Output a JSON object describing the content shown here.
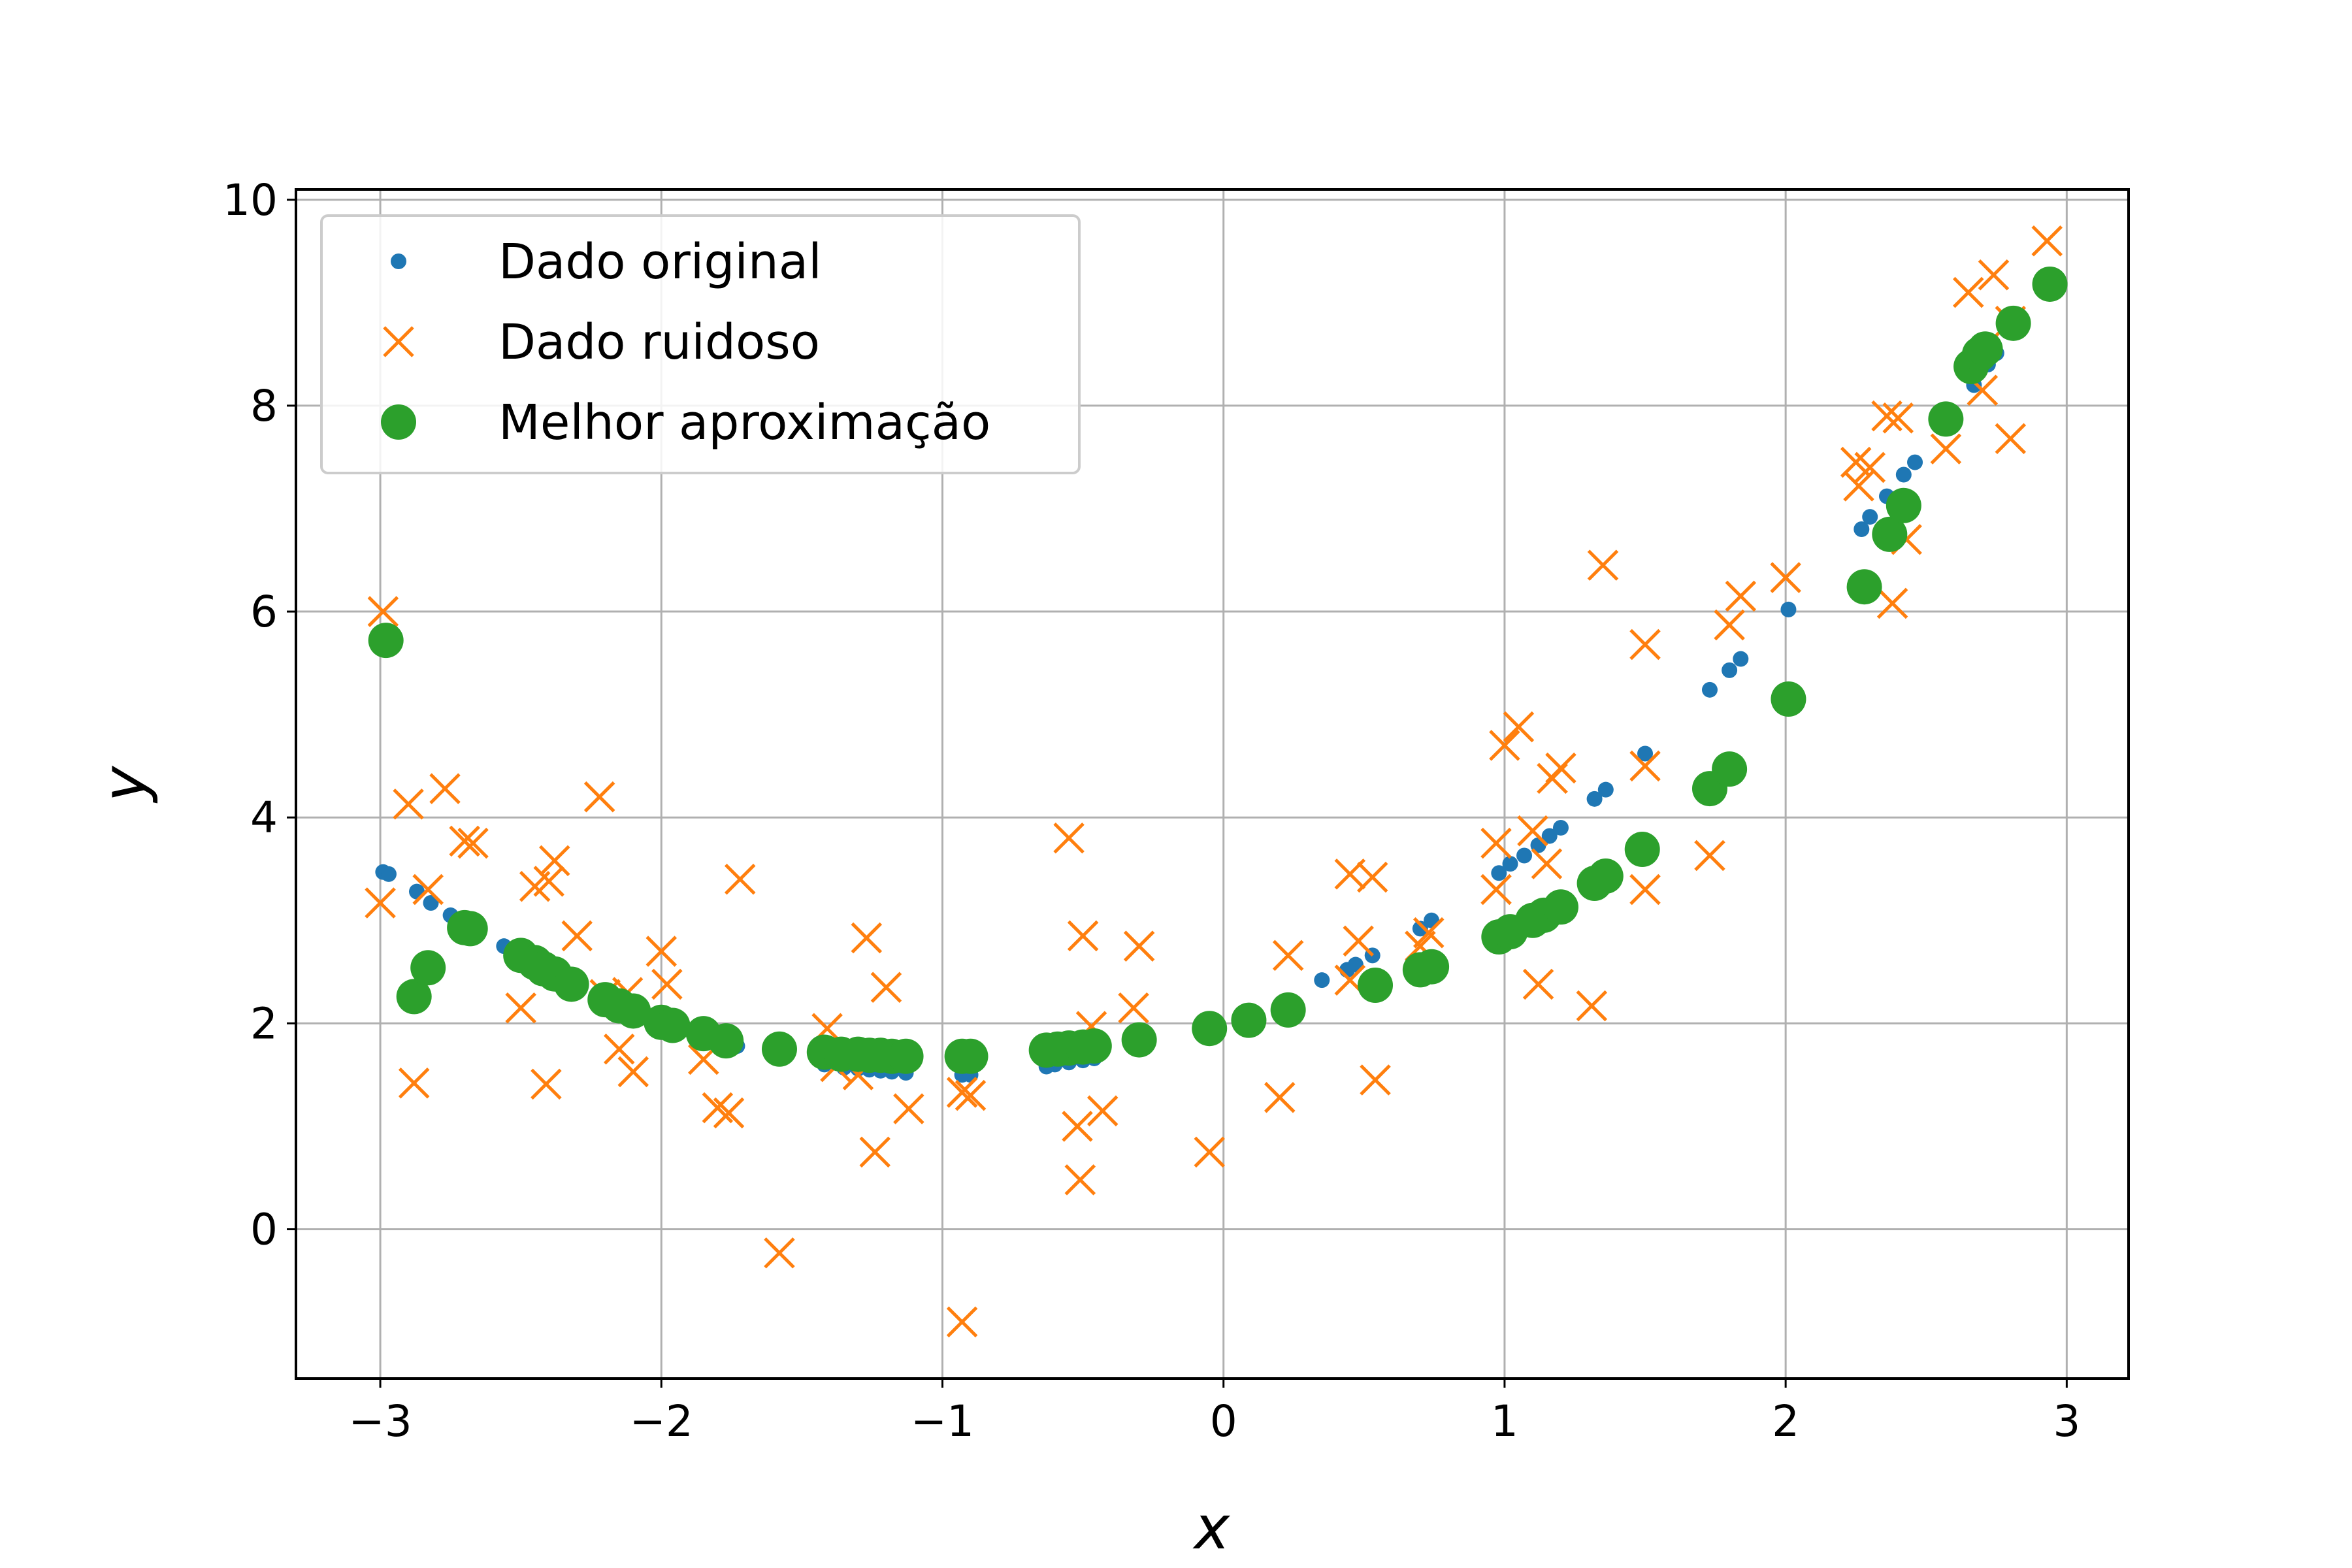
{
  "chart_data": {
    "type": "scatter",
    "xlabel": "x",
    "ylabel": "y",
    "xlim": [
      -3.3,
      3.22
    ],
    "ylim": [
      -1.45,
      10.1
    ],
    "xticks": [
      -3,
      -2,
      -1,
      0,
      1,
      2,
      3
    ],
    "xtick_labels": [
      "−3",
      "−2",
      "−1",
      "0",
      "1",
      "2",
      "3"
    ],
    "yticks": [
      0,
      2,
      4,
      6,
      8,
      10
    ],
    "ytick_labels": [
      "0",
      "2",
      "4",
      "6",
      "8",
      "10"
    ],
    "grid": true,
    "legend_position": "upper-left",
    "series": [
      {
        "name": "Dado original",
        "marker": "small-dot",
        "color": "#1f77b4",
        "points": [
          [
            -2.99,
            3.47
          ],
          [
            -2.97,
            3.45
          ],
          [
            -2.87,
            3.28
          ],
          [
            -2.82,
            3.17
          ],
          [
            -2.75,
            3.05
          ],
          [
            -2.68,
            2.93
          ],
          [
            -2.56,
            2.75
          ],
          [
            -2.5,
            2.65
          ],
          [
            -2.45,
            2.58
          ],
          [
            -2.41,
            2.52
          ],
          [
            -2.37,
            2.46
          ],
          [
            -2.3,
            2.37
          ],
          [
            -2.22,
            2.27
          ],
          [
            -2.17,
            2.2
          ],
          [
            -2.12,
            2.14
          ],
          [
            -2.02,
            2.03
          ],
          [
            -1.97,
            1.98
          ],
          [
            -1.87,
            1.89
          ],
          [
            -1.77,
            1.81
          ],
          [
            -1.73,
            1.78
          ],
          [
            -1.58,
            1.68
          ],
          [
            -1.42,
            1.6
          ],
          [
            -1.35,
            1.57
          ],
          [
            -1.3,
            1.56
          ],
          [
            -1.26,
            1.55
          ],
          [
            -1.22,
            1.54
          ],
          [
            -1.18,
            1.53
          ],
          [
            -1.13,
            1.52
          ],
          [
            -0.93,
            1.5
          ],
          [
            -0.9,
            1.5
          ],
          [
            -0.63,
            1.58
          ],
          [
            -0.6,
            1.6
          ],
          [
            -0.55,
            1.62
          ],
          [
            -0.5,
            1.64
          ],
          [
            -0.46,
            1.66
          ],
          [
            -0.3,
            1.75
          ],
          [
            -0.05,
            1.95
          ],
          [
            0.08,
            2.05
          ],
          [
            0.23,
            2.19
          ],
          [
            0.35,
            2.42
          ],
          [
            0.44,
            2.52
          ],
          [
            0.47,
            2.57
          ],
          [
            0.53,
            2.66
          ],
          [
            0.7,
            2.92
          ],
          [
            0.74,
            3.0
          ],
          [
            0.98,
            3.46
          ],
          [
            1.02,
            3.55
          ],
          [
            1.07,
            3.63
          ],
          [
            1.12,
            3.73
          ],
          [
            1.16,
            3.82
          ],
          [
            1.2,
            3.9
          ],
          [
            1.32,
            4.18
          ],
          [
            1.36,
            4.27
          ],
          [
            1.5,
            4.62
          ],
          [
            1.73,
            5.24
          ],
          [
            1.8,
            5.43
          ],
          [
            1.84,
            5.54
          ],
          [
            2.01,
            6.02
          ],
          [
            2.27,
            6.8
          ],
          [
            2.3,
            6.92
          ],
          [
            2.36,
            7.12
          ],
          [
            2.42,
            7.33
          ],
          [
            2.46,
            7.45
          ],
          [
            2.57,
            7.84
          ],
          [
            2.67,
            8.2
          ],
          [
            2.72,
            8.4
          ],
          [
            2.75,
            8.51
          ],
          [
            2.82,
            8.78
          ],
          [
            2.94,
            9.22
          ]
        ]
      },
      {
        "name": "Dado ruidoso",
        "marker": "x",
        "color": "#ff7f0e",
        "points": [
          [
            -2.99,
            6.0
          ],
          [
            -3.0,
            3.17
          ],
          [
            -2.9,
            4.13
          ],
          [
            -2.88,
            1.42
          ],
          [
            -2.83,
            3.3
          ],
          [
            -2.77,
            4.28
          ],
          [
            -2.7,
            3.77
          ],
          [
            -2.67,
            3.75
          ],
          [
            -2.5,
            2.15
          ],
          [
            -2.45,
            3.33
          ],
          [
            -2.41,
            1.41
          ],
          [
            -2.4,
            3.38
          ],
          [
            -2.38,
            3.58
          ],
          [
            -2.3,
            2.85
          ],
          [
            -2.22,
            4.2
          ],
          [
            -2.2,
            2.28
          ],
          [
            -2.15,
            1.75
          ],
          [
            -2.12,
            2.3
          ],
          [
            -2.1,
            1.53
          ],
          [
            -2.0,
            2.7
          ],
          [
            -1.98,
            2.38
          ],
          [
            -1.85,
            1.65
          ],
          [
            -1.8,
            1.18
          ],
          [
            -1.76,
            1.13
          ],
          [
            -1.72,
            3.4
          ],
          [
            -1.58,
            -0.23
          ],
          [
            -1.41,
            1.95
          ],
          [
            -1.38,
            1.58
          ],
          [
            -1.3,
            1.5
          ],
          [
            -1.27,
            2.83
          ],
          [
            -1.24,
            0.75
          ],
          [
            -1.2,
            2.35
          ],
          [
            -1.12,
            1.17
          ],
          [
            -0.93,
            -0.9
          ],
          [
            -0.93,
            1.33
          ],
          [
            -0.9,
            1.3
          ],
          [
            -0.55,
            3.8
          ],
          [
            -0.52,
            1.0
          ],
          [
            -0.51,
            0.48
          ],
          [
            -0.5,
            2.85
          ],
          [
            -0.47,
            1.97
          ],
          [
            -0.43,
            1.15
          ],
          [
            -0.32,
            2.15
          ],
          [
            -0.3,
            2.75
          ],
          [
            -0.05,
            0.75
          ],
          [
            0.2,
            1.28
          ],
          [
            0.23,
            2.66
          ],
          [
            0.45,
            3.45
          ],
          [
            0.45,
            2.42
          ],
          [
            0.48,
            2.8
          ],
          [
            0.53,
            3.42
          ],
          [
            0.54,
            1.45
          ],
          [
            0.7,
            2.75
          ],
          [
            0.73,
            2.88
          ],
          [
            0.97,
            3.75
          ],
          [
            0.97,
            3.3
          ],
          [
            1.0,
            4.7
          ],
          [
            1.05,
            4.88
          ],
          [
            1.1,
            3.87
          ],
          [
            1.12,
            2.38
          ],
          [
            1.15,
            3.55
          ],
          [
            1.17,
            4.38
          ],
          [
            1.2,
            4.48
          ],
          [
            1.31,
            2.17
          ],
          [
            1.35,
            6.45
          ],
          [
            1.5,
            5.68
          ],
          [
            1.5,
            4.5
          ],
          [
            1.5,
            3.3
          ],
          [
            1.73,
            3.63
          ],
          [
            1.8,
            5.87
          ],
          [
            1.84,
            6.15
          ],
          [
            2.0,
            6.33
          ],
          [
            2.25,
            7.45
          ],
          [
            2.26,
            7.22
          ],
          [
            2.3,
            7.4
          ],
          [
            2.36,
            7.9
          ],
          [
            2.38,
            6.08
          ],
          [
            2.4,
            7.88
          ],
          [
            2.43,
            6.7
          ],
          [
            2.57,
            7.58
          ],
          [
            2.65,
            9.1
          ],
          [
            2.7,
            8.15
          ],
          [
            2.74,
            9.27
          ],
          [
            2.8,
            7.68
          ],
          [
            2.8,
            8.82
          ],
          [
            2.93,
            9.6
          ]
        ]
      },
      {
        "name": "Melhor aproximação",
        "marker": "large-dot",
        "color": "#2ca02c",
        "points": [
          [
            -2.98,
            5.72
          ],
          [
            -2.88,
            2.26
          ],
          [
            -2.83,
            2.54
          ],
          [
            -2.7,
            2.93
          ],
          [
            -2.68,
            2.92
          ],
          [
            -2.5,
            2.66
          ],
          [
            -2.45,
            2.59
          ],
          [
            -2.42,
            2.53
          ],
          [
            -2.38,
            2.48
          ],
          [
            -2.32,
            2.38
          ],
          [
            -2.2,
            2.23
          ],
          [
            -2.15,
            2.17
          ],
          [
            -2.1,
            2.12
          ],
          [
            -2.0,
            2.01
          ],
          [
            -1.96,
            1.98
          ],
          [
            -1.85,
            1.9
          ],
          [
            -1.77,
            1.83
          ],
          [
            -1.58,
            1.75
          ],
          [
            -1.42,
            1.72
          ],
          [
            -1.36,
            1.7
          ],
          [
            -1.3,
            1.7
          ],
          [
            -1.26,
            1.69
          ],
          [
            -1.22,
            1.69
          ],
          [
            -1.18,
            1.68
          ],
          [
            -1.13,
            1.68
          ],
          [
            -0.93,
            1.68
          ],
          [
            -0.9,
            1.68
          ],
          [
            -0.63,
            1.74
          ],
          [
            -0.59,
            1.75
          ],
          [
            -0.55,
            1.76
          ],
          [
            -0.5,
            1.77
          ],
          [
            -0.46,
            1.78
          ],
          [
            -0.3,
            1.84
          ],
          [
            -0.05,
            1.95
          ],
          [
            0.09,
            2.03
          ],
          [
            0.23,
            2.13
          ],
          [
            0.54,
            2.37
          ],
          [
            0.7,
            2.52
          ],
          [
            0.74,
            2.55
          ],
          [
            0.98,
            2.84
          ],
          [
            1.02,
            2.89
          ],
          [
            1.1,
            3.0
          ],
          [
            1.14,
            3.05
          ],
          [
            1.2,
            3.13
          ],
          [
            1.32,
            3.36
          ],
          [
            1.36,
            3.43
          ],
          [
            1.49,
            3.69
          ],
          [
            1.73,
            4.28
          ],
          [
            1.8,
            4.47
          ],
          [
            2.01,
            5.15
          ],
          [
            2.28,
            6.24
          ],
          [
            2.37,
            6.75
          ],
          [
            2.42,
            7.03
          ],
          [
            2.57,
            7.87
          ],
          [
            2.66,
            8.38
          ],
          [
            2.69,
            8.5
          ],
          [
            2.71,
            8.55
          ],
          [
            2.81,
            8.8
          ],
          [
            2.94,
            9.18
          ]
        ]
      }
    ]
  }
}
